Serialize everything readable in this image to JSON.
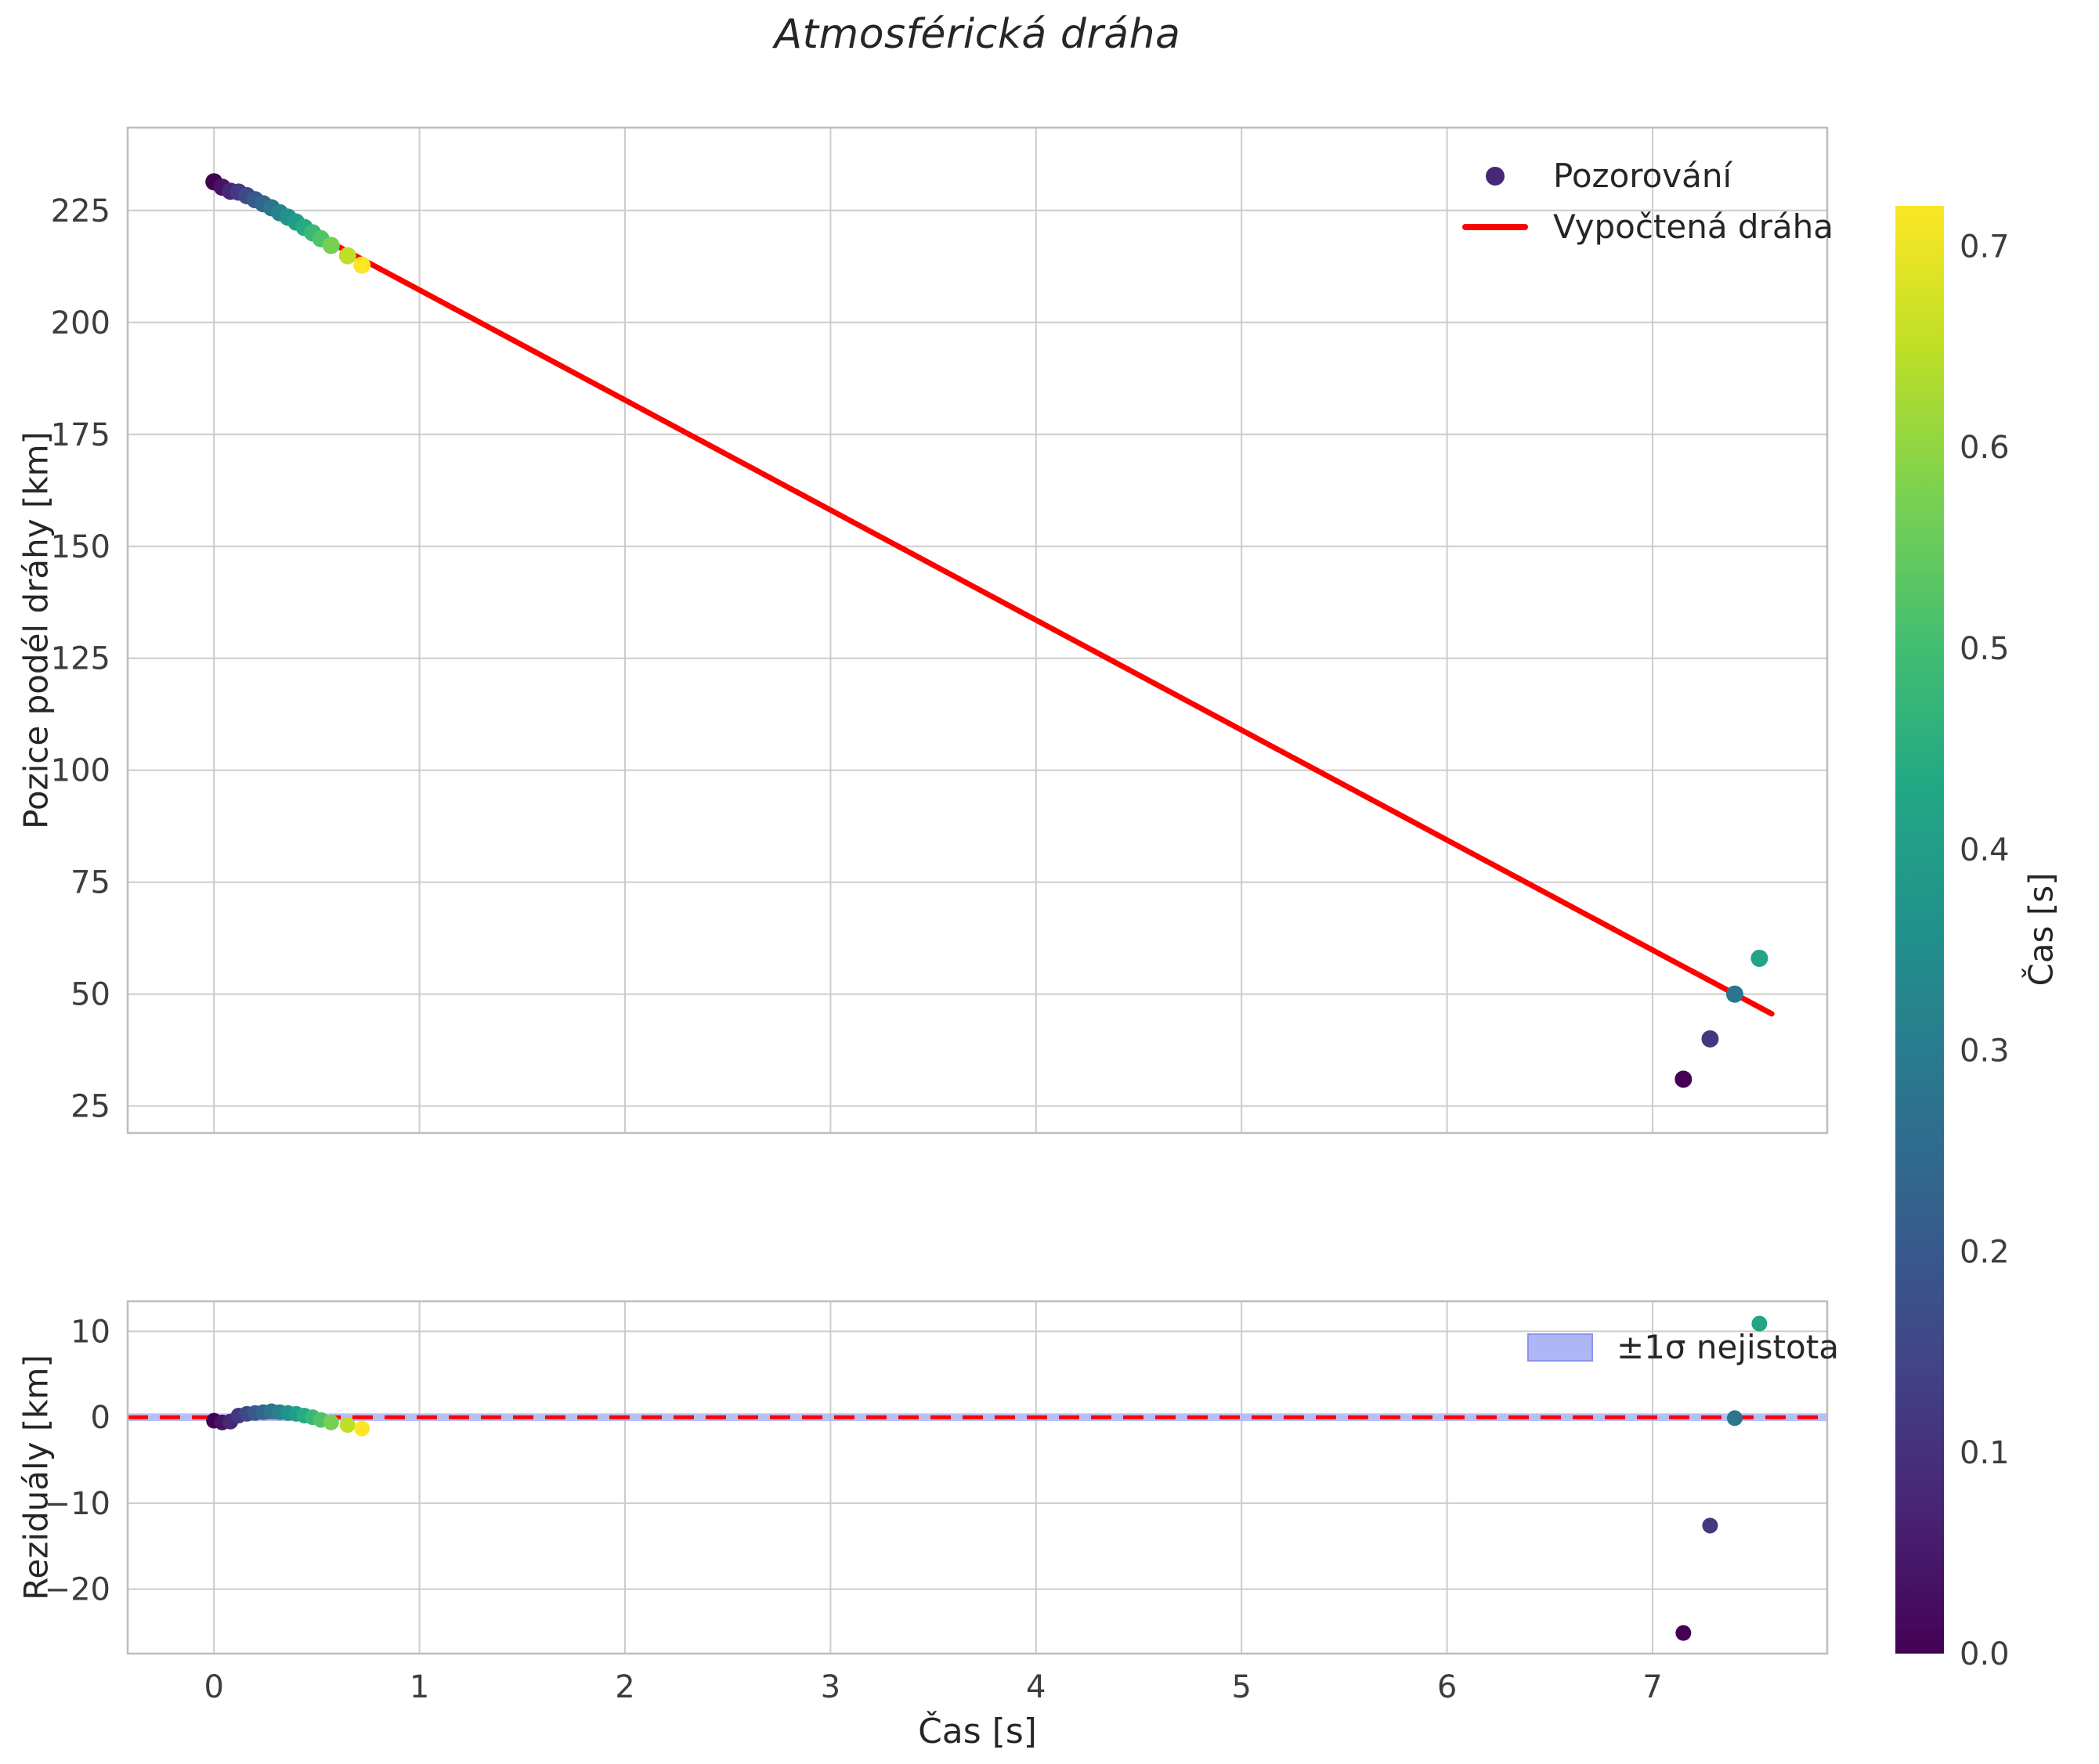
{
  "chart_data": {
    "type": "scatter",
    "title": "Atmosférická dráha",
    "xlabel": "Čas [s]",
    "main": {
      "ylabel": "Pozice podél dráhy [km]",
      "xlim": [
        -0.42,
        7.85
      ],
      "ylim": [
        19,
        243.5
      ],
      "xticks": [
        0,
        1,
        2,
        3,
        4,
        5,
        6,
        7
      ],
      "yticks": [
        25,
        50,
        75,
        100,
        125,
        150,
        175,
        200,
        225
      ],
      "grid": true,
      "legend": [
        {
          "type": "marker",
          "label": "Pozorování"
        },
        {
          "type": "line",
          "label": "Vypočtená dráha"
        }
      ]
    },
    "residuals": {
      "ylabel": "Reziduály [km]",
      "ylim": [
        -27.5,
        13.5
      ],
      "yticks": [
        -20,
        -10,
        0,
        10
      ],
      "zero_line_y": 0,
      "band_halfwidth": 0.45,
      "band_label": "±1σ nejistota"
    },
    "fit_line": {
      "x": [
        0.0,
        7.58
      ],
      "y": [
        231.8,
        45.6
      ]
    },
    "observations": [
      {
        "t": 0.0,
        "pos": 231.4,
        "res": -0.4,
        "c": 0.0
      },
      {
        "t": 0.04,
        "pos": 230.2,
        "res": -0.6,
        "c": 0.04
      },
      {
        "t": 0.08,
        "pos": 229.3,
        "res": -0.5,
        "c": 0.08
      },
      {
        "t": 0.12,
        "pos": 229.1,
        "res": 0.2,
        "c": 0.12
      },
      {
        "t": 0.16,
        "pos": 228.3,
        "res": 0.4,
        "c": 0.16
      },
      {
        "t": 0.2,
        "pos": 227.4,
        "res": 0.5,
        "c": 0.2
      },
      {
        "t": 0.24,
        "pos": 226.5,
        "res": 0.6,
        "c": 0.24
      },
      {
        "t": 0.28,
        "pos": 225.6,
        "res": 0.7,
        "c": 0.28
      },
      {
        "t": 0.32,
        "pos": 224.5,
        "res": 0.6,
        "c": 0.32
      },
      {
        "t": 0.36,
        "pos": 223.5,
        "res": 0.5,
        "c": 0.36
      },
      {
        "t": 0.4,
        "pos": 222.4,
        "res": 0.4,
        "c": 0.4
      },
      {
        "t": 0.44,
        "pos": 221.2,
        "res": 0.2,
        "c": 0.44
      },
      {
        "t": 0.48,
        "pos": 220.0,
        "res": 0.0,
        "c": 0.48
      },
      {
        "t": 0.52,
        "pos": 218.7,
        "res": -0.3,
        "c": 0.52
      },
      {
        "t": 0.57,
        "pos": 217.2,
        "res": -0.6,
        "c": 0.57
      },
      {
        "t": 0.65,
        "pos": 214.9,
        "res": -0.9,
        "c": 0.65
      },
      {
        "t": 0.72,
        "pos": 212.8,
        "res": -1.3,
        "c": 0.72
      },
      {
        "t": 7.15,
        "pos": 31.0,
        "res": -25.1,
        "c": 0.0
      },
      {
        "t": 7.28,
        "pos": 40.0,
        "res": -12.6,
        "c": 0.12
      },
      {
        "t": 7.4,
        "pos": 50.0,
        "res": -0.1,
        "c": 0.28
      },
      {
        "t": 7.52,
        "pos": 58.0,
        "res": 10.9,
        "c": 0.42
      }
    ],
    "colorbar": {
      "label": "Čas [s]",
      "vmin": 0.0,
      "vmax": 0.72,
      "ticks": [
        0.0,
        0.1,
        0.2,
        0.3,
        0.4,
        0.5,
        0.6,
        0.7
      ]
    },
    "colors": {
      "fit_line": "#ff0000",
      "zero_line": "#ff0000",
      "band_fill": "#aeb6f5",
      "band_edge": "#8a94ec",
      "grid": "#cccccc",
      "frame": "#bdbdbd",
      "tick_text": "#3d3d3d",
      "label_text": "#262626",
      "legend_marker": "#462976"
    },
    "viridis": [
      {
        "t": 0.0,
        "c": "#440154"
      },
      {
        "t": 0.1,
        "c": "#482475"
      },
      {
        "t": 0.2,
        "c": "#414487"
      },
      {
        "t": 0.3,
        "c": "#355f8d"
      },
      {
        "t": 0.4,
        "c": "#2a788e"
      },
      {
        "t": 0.5,
        "c": "#21918c"
      },
      {
        "t": 0.6,
        "c": "#22a884"
      },
      {
        "t": 0.7,
        "c": "#44bf70"
      },
      {
        "t": 0.8,
        "c": "#7ad151"
      },
      {
        "t": 0.9,
        "c": "#bddf26"
      },
      {
        "t": 1.0,
        "c": "#fde725"
      }
    ]
  }
}
